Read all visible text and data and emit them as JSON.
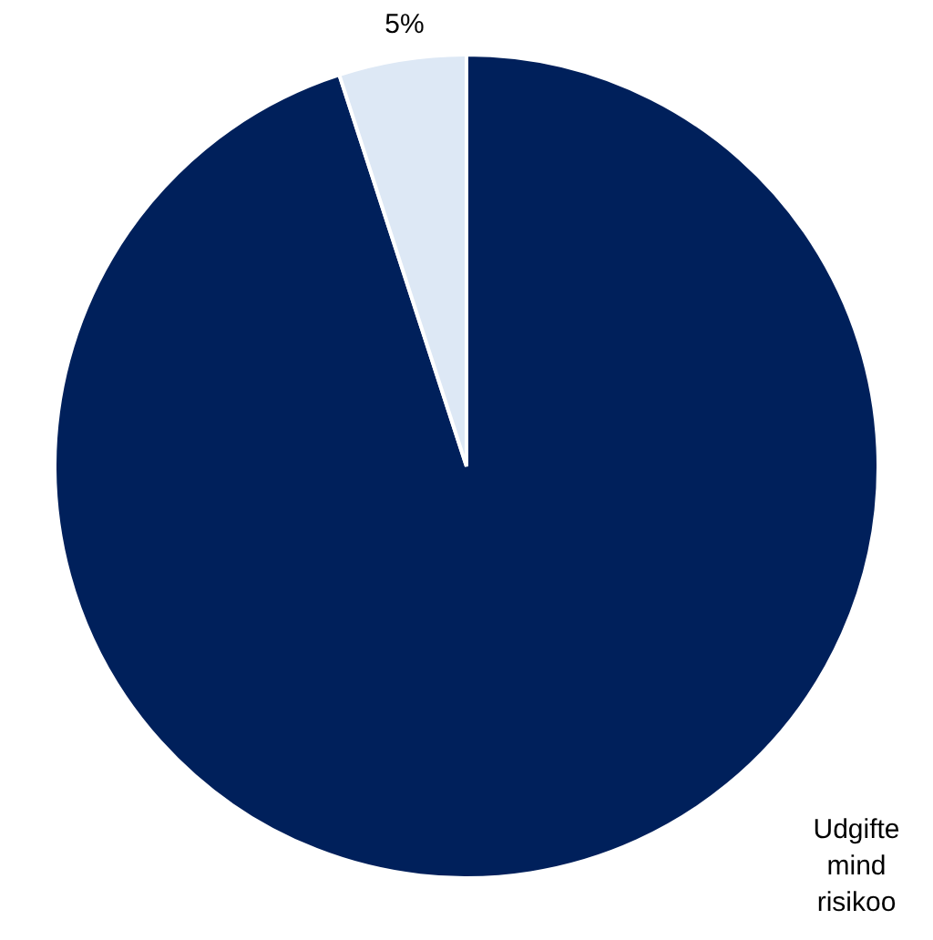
{
  "chart_data": {
    "type": "pie",
    "categories": [
      "Udgifte\nmind\nrisikoo",
      null
    ],
    "values": [
      95,
      5
    ],
    "colors": [
      "#00205b",
      "#dde8f5"
    ],
    "value_labels": [
      null,
      "5%"
    ],
    "legend": false
  }
}
